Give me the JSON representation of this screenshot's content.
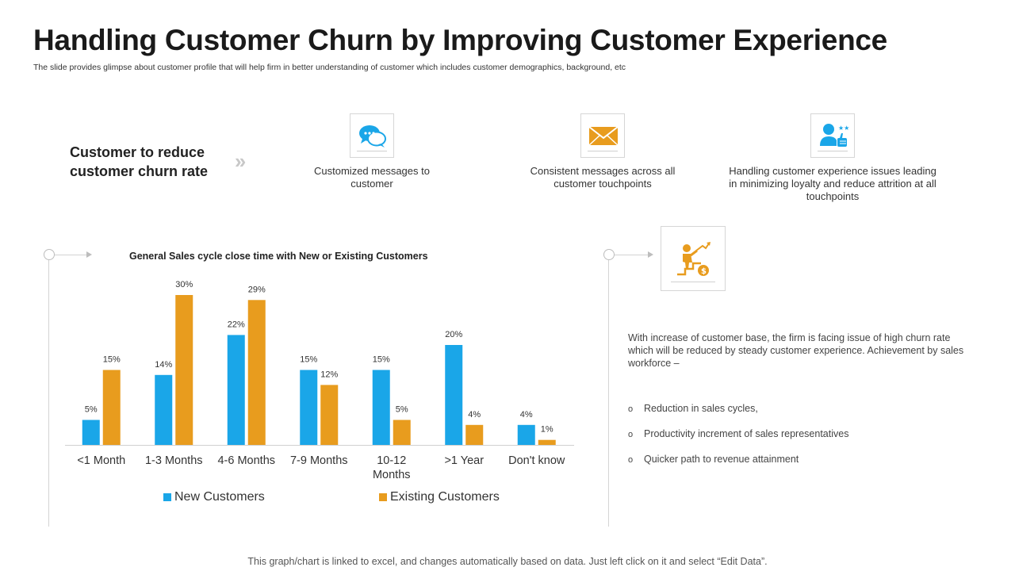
{
  "title": "Handling Customer Churn by Improving Customer Experience",
  "subtitle": "The slide provides glimpse about customer profile that will help firm in better understanding of customer which includes customer demographics, background, etc",
  "strategy_label": "Customer to reduce customer churn rate",
  "features": [
    {
      "icon": "chat-bubbles-icon",
      "text": "Customized messages to customer"
    },
    {
      "icon": "envelope-icon",
      "text": "Consistent messages across all customer touchpoints"
    },
    {
      "icon": "customer-thumbs-up-icon",
      "text": "Handling customer experience  issues leading in minimizing loyalty and reduce  attrition at all touchpoints"
    }
  ],
  "right_panel": {
    "icon": "career-growth-icon",
    "description": "With increase  of customer base,  the firm is facing issue of high churn rate which will be reduced  by steady customer experience. Achievement by sales workforce –",
    "bullets": [
      "Reduction in sales cycles,",
      "Productivity increment  of sales representatives",
      "Quicker path to revenue attainment"
    ],
    "bullet_marker": "o"
  },
  "footer": "This graph/chart is linked to excel,  and changes automatically based on data.  Just left click on it and select “Edit Data”.",
  "colors": {
    "new": "#1aa6e8",
    "existing": "#e89c1e"
  },
  "chart_data": {
    "type": "bar",
    "title": "General Sales cycle close time with New or Existing Customers",
    "categories": [
      "<1 Month",
      "1-3 Months",
      "4-6 Months",
      "7-9 Months",
      "10-12 Months",
      ">1 Year",
      "Don't know"
    ],
    "series": [
      {
        "name": "New Customers",
        "values": [
          5,
          14,
          22,
          15,
          15,
          20,
          4
        ],
        "labels": [
          "5%",
          "14%",
          "22%",
          "15%",
          "15%",
          "20%",
          "4%"
        ]
      },
      {
        "name": "Existing Customers",
        "values": [
          15,
          30,
          29,
          12,
          5,
          4,
          1
        ],
        "labels": [
          "15%",
          "30%",
          "29%",
          "12%",
          "5%",
          "4%",
          "1%"
        ]
      }
    ],
    "ylim": [
      0,
      30
    ],
    "grid": false,
    "legend": "bottom"
  }
}
